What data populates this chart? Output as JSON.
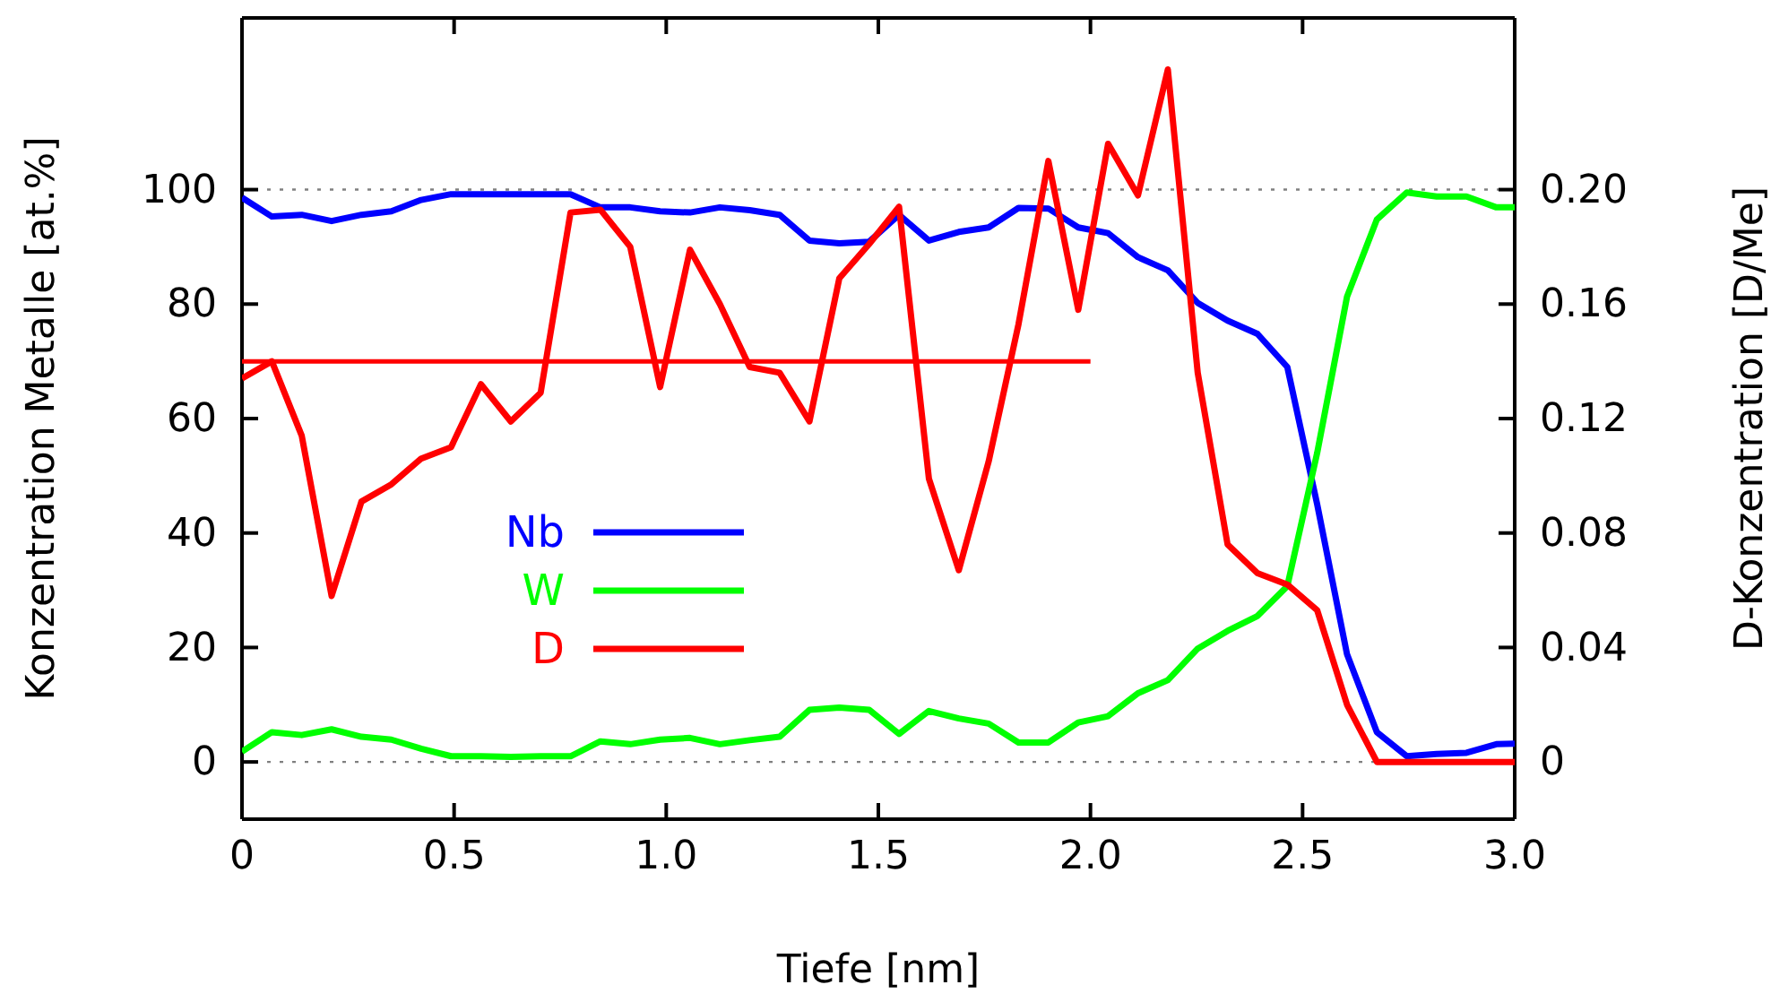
{
  "chart_data": {
    "type": "line",
    "xlabel": "Tiefe [nm]",
    "ylabel": "Konzentration Metalle [at.%]",
    "y2label": "D-Konzentration [D/Me]",
    "x": [
      0,
      0.0704,
      0.1408,
      0.2112,
      0.2816,
      0.352,
      0.4224,
      0.4928,
      0.5632,
      0.6336,
      0.704,
      0.7744,
      0.8448,
      0.9152,
      0.9856,
      1.056,
      1.1264,
      1.1968,
      1.2672,
      1.3376,
      1.408,
      1.4784,
      1.5488,
      1.6192,
      1.6896,
      1.76,
      1.8304,
      1.9008,
      1.9712,
      2.0416,
      2.112,
      2.1824,
      2.2528,
      2.3232,
      2.3936,
      2.464,
      2.5344,
      2.6048,
      2.6752,
      2.7456,
      2.816,
      2.8864,
      2.9568,
      3.0
    ],
    "xlim": [
      0,
      3.0
    ],
    "xticks": [
      0,
      0.5,
      {
        "value": 1,
        "label": "1.0"
      },
      1.5,
      {
        "value": 2,
        "label": "2.0"
      },
      2.5,
      {
        "value": 3,
        "label": "3.0"
      }
    ],
    "ylim": [
      -10,
      130
    ],
    "yticks": [
      0,
      20,
      40,
      60,
      80,
      100
    ],
    "y2lim": [
      -0.02,
      0.26
    ],
    "y2ticks": [
      0,
      0.04,
      0.08,
      0.12,
      0.16,
      {
        "value": 0.2,
        "label": "0.20"
      }
    ],
    "series": [
      {
        "name": "Nb",
        "color": "#0000ff",
        "values": [
          98.6,
          95.3,
          95.6,
          94.5,
          95.6,
          96.2,
          98.2,
          99.2,
          99.2,
          99.2,
          99.2,
          99.2,
          96.9,
          96.9,
          96.2,
          96.0,
          96.9,
          96.4,
          95.6,
          91.1,
          90.6,
          90.9,
          95.6,
          91.1,
          92.6,
          93.4,
          96.8,
          96.7,
          93.4,
          92.4,
          88.2,
          85.9,
          80.2,
          77.1,
          74.8,
          69.0,
          45,
          18.8,
          5.2,
          1.0,
          1.4,
          1.6,
          3.1,
          3.2
        ]
      },
      {
        "name": "W",
        "color": "#00ff00",
        "values": [
          1.8,
          5.2,
          4.7,
          5.7,
          4.4,
          3.9,
          2.3,
          1.0,
          1.0,
          0.9,
          1.0,
          1.0,
          3.6,
          3.1,
          3.9,
          4.2,
          3.1,
          3.8,
          4.4,
          9.1,
          9.5,
          9.1,
          4.9,
          8.9,
          7.6,
          6.7,
          3.4,
          3.4,
          6.9,
          8.0,
          12.0,
          14.3,
          19.8,
          22.9,
          25.5,
          30.7,
          54,
          81.3,
          94.8,
          99.5,
          98.8,
          98.8,
          96.9,
          96.9
        ]
      },
      {
        "name": "D",
        "color": "#ff0000",
        "axis": "y2",
        "values": [
          0.134,
          0.14,
          0.114,
          0.058,
          0.091,
          0.097,
          0.106,
          0.11,
          0.132,
          0.119,
          0.129,
          0.192,
          0.193,
          0.18,
          0.131,
          0.179,
          0.16,
          0.138,
          0.136,
          0.119,
          0.169,
          0.181,
          0.194,
          0.099,
          0.067,
          0.105,
          0.153,
          0.21,
          0.158,
          0.216,
          0.198,
          0.242,
          0.136,
          0.076,
          0.066,
          0.062,
          0.053,
          0.02,
          0,
          0,
          0,
          0,
          0,
          0
        ]
      },
      {
        "color": "#ff0000",
        "axis": "y2",
        "x": [
          0,
          2.0
        ],
        "values": [
          0.14,
          0.14
        ]
      }
    ],
    "ref_lines": [
      {
        "axis": "y",
        "value": 0,
        "color": "#808080",
        "line_style": "dotted"
      },
      {
        "axis": "y",
        "value": 100,
        "color": "#808080",
        "line_style": "dotted"
      }
    ],
    "legend": "left",
    "grid": false,
    "line_style": "solid",
    "marker": "none"
  }
}
